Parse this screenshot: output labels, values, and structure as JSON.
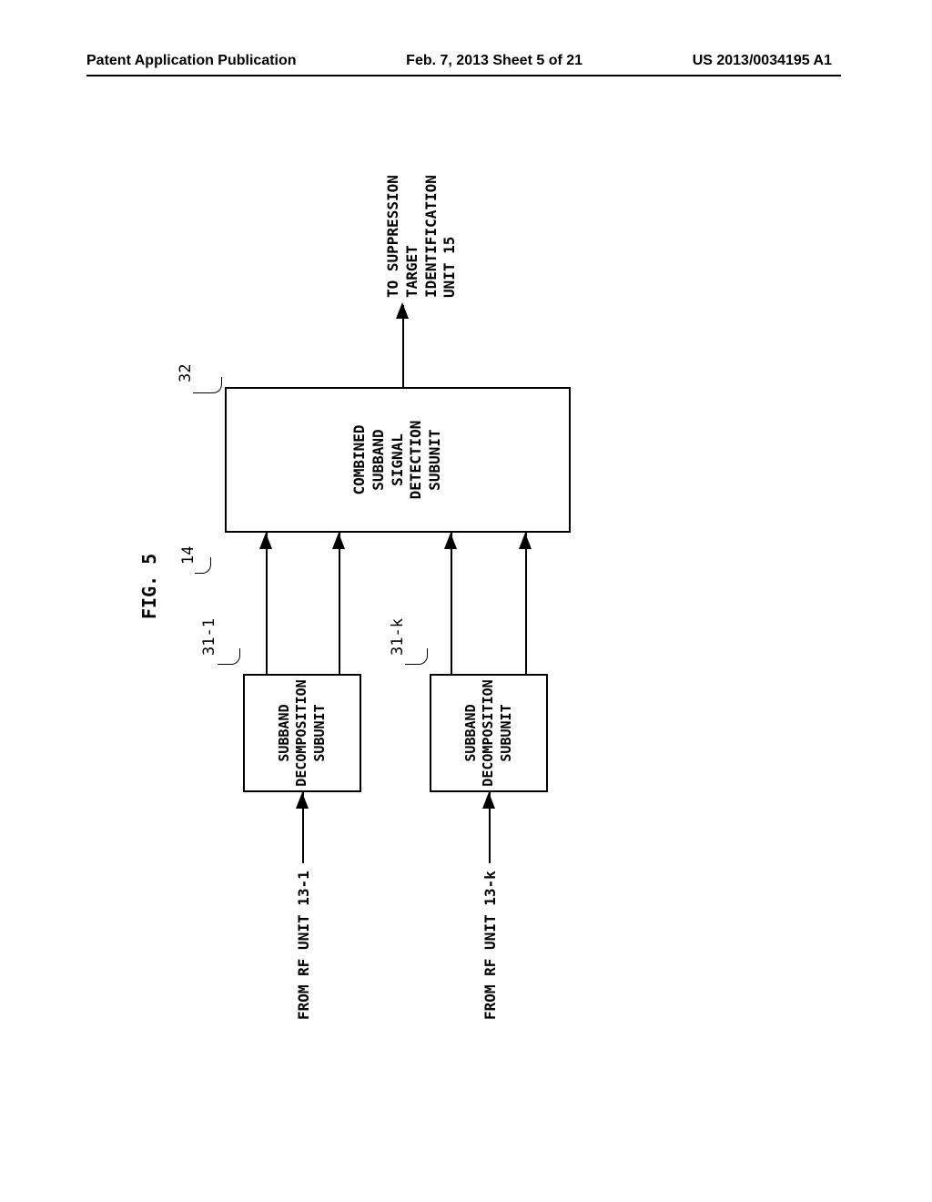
{
  "header": {
    "left": "Patent Application Publication",
    "center": "Feb. 7, 2013  Sheet 5 of 21",
    "right": "US 2013/0034195 A1"
  },
  "diagram": {
    "figure_label": "FIG. 5",
    "main_ref": "14",
    "ref_labels": {
      "r31_1": "31-1",
      "r31_k": "31-k",
      "r32": "32"
    },
    "boxes": {
      "subband_1": "SUBBAND\nDECOMPOSITION\nSUBUNIT",
      "subband_2": "SUBBAND\nDECOMPOSITION\nSUBUNIT",
      "combined": "COMBINED\nSUBBAND\nSIGNAL\nDETECTION\nSUBUNIT"
    },
    "inputs": {
      "in_1": "FROM RF UNIT 13-1",
      "in_2": "FROM RF UNIT 13-k"
    },
    "output": "TO SUPPRESSION TARGET\nIDENTIFICATION UNIT 15",
    "colors": {
      "line_color": "#000000",
      "background": "#ffffff",
      "text_color": "#000000"
    },
    "box_border_width": 2.5,
    "line_width": 1.5,
    "fonts": {
      "label_fontsize": 16,
      "ref_fontsize": 17,
      "figure_fontsize": 20
    }
  }
}
